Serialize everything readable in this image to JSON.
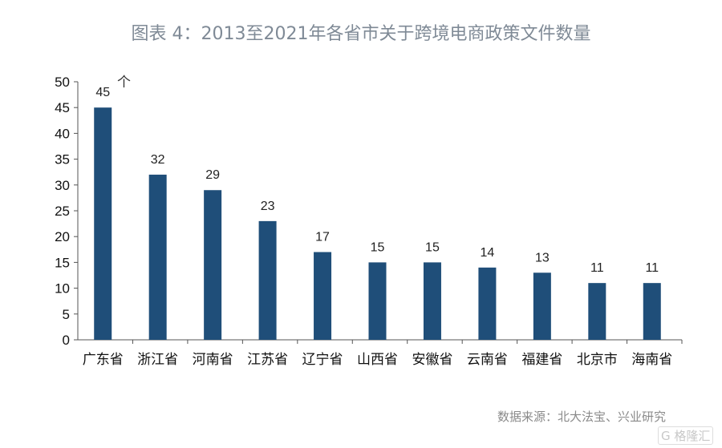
{
  "chart_data": {
    "type": "bar",
    "title": "图表 4：2013至2021年各省市关于跨境电商政策文件数量",
    "unit_label": "个",
    "categories": [
      "广东省",
      "浙江省",
      "河南省",
      "江苏省",
      "辽宁省",
      "山西省",
      "安徽省",
      "云南省",
      "福建省",
      "北京市",
      "海南省"
    ],
    "values": [
      45,
      32,
      29,
      23,
      17,
      15,
      15,
      14,
      13,
      11,
      11
    ],
    "yticks": [
      0,
      5,
      10,
      15,
      20,
      25,
      30,
      35,
      40,
      45,
      50
    ],
    "ylim": [
      0,
      50
    ],
    "grid": false,
    "bar_color": "#1f4e79"
  },
  "source": "数据来源：北大法宝、兴业研究",
  "watermark": "格隆汇"
}
